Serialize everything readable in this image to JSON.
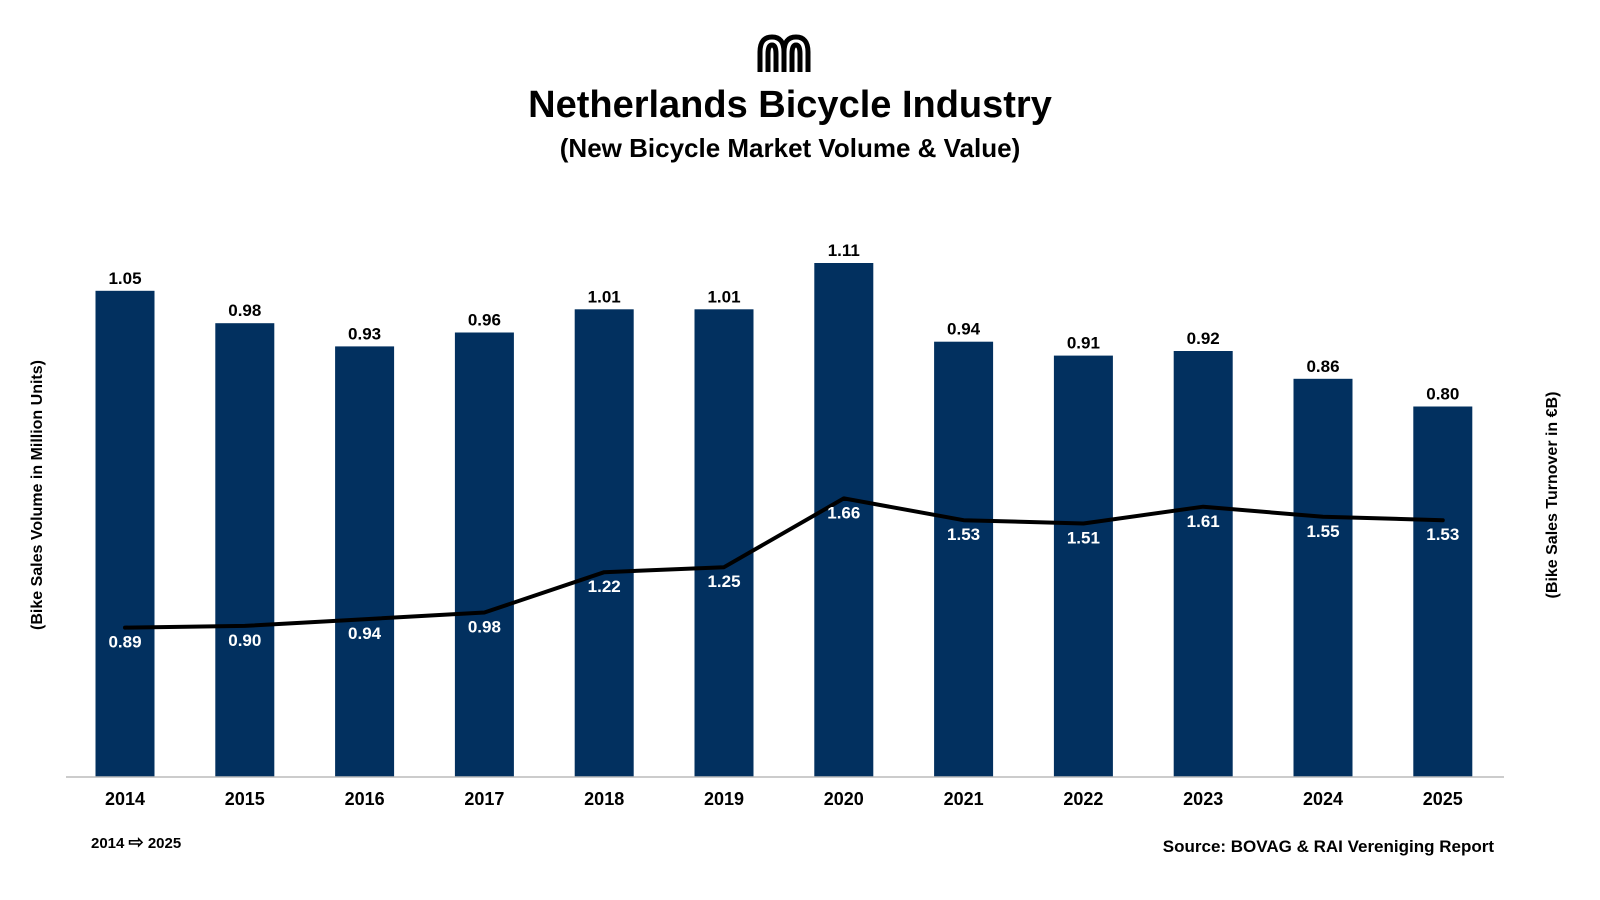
{
  "header": {
    "title": "Netherlands Bicycle Industry",
    "subtitle": "(New Bicycle Market Volume & Value)"
  },
  "colors": {
    "bar": "#02305f",
    "line": "#000000",
    "axis": "#bbbbbb",
    "text": "#000000",
    "line_label": "#ffffff"
  },
  "chart_data": {
    "type": "bar",
    "title": "Netherlands Bicycle Industry",
    "subtitle": "(New Bicycle Market Volume & Value)",
    "categories": [
      "2014",
      "2015",
      "2016",
      "2017",
      "2018",
      "2019",
      "2020",
      "2021",
      "2022",
      "2023",
      "2024",
      "2025"
    ],
    "series": [
      {
        "name": "Bike Sales Volume",
        "type": "bar",
        "axis": "left",
        "values": [
          1.05,
          0.98,
          0.93,
          0.96,
          1.01,
          1.01,
          1.11,
          0.94,
          0.91,
          0.92,
          0.86,
          0.8
        ],
        "labels": [
          "1.05",
          "0.98",
          "0.93",
          "0.96",
          "1.01",
          "1.01",
          "1.11",
          "0.94",
          "0.91",
          "0.92",
          "0.86",
          "0.80"
        ]
      },
      {
        "name": "Bike Sales Turnover",
        "type": "line",
        "axis": "right",
        "values": [
          0.89,
          0.9,
          0.94,
          0.98,
          1.22,
          1.25,
          1.66,
          1.53,
          1.51,
          1.61,
          1.55,
          1.53
        ],
        "labels": [
          "0.89",
          "0.90",
          "0.94",
          "0.98",
          "1.22",
          "1.25",
          "1.66",
          "1.53",
          "1.51",
          "1.61",
          "1.55",
          "1.53"
        ]
      }
    ],
    "ylabel": "(Bike Sales Volume in Million Units)",
    "y2label": "(Bike Sales Turnover in €B)",
    "ylim": [
      0,
      1.11
    ],
    "y2lim": [
      0,
      2.8
    ],
    "grid": false,
    "legend": "none"
  },
  "footer": {
    "range_start": "2014",
    "range_end": "2025",
    "arrow": "⇨",
    "source": "Source: BOVAG & RAI Vereniging Report"
  }
}
